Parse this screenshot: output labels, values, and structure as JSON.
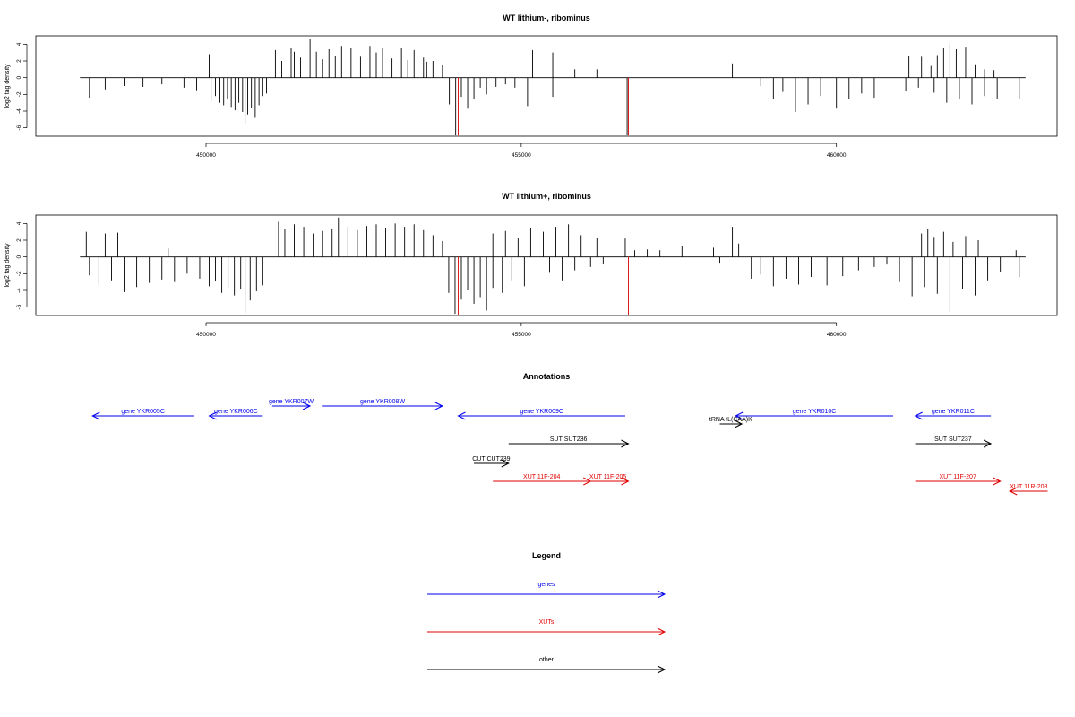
{
  "chart_data": [
    {
      "type": "bar",
      "title": "WT lithium-, ribominus",
      "ylabel": "log2 tag density",
      "xlabel": "",
      "xlim": [
        447300,
        463500
      ],
      "ylim": [
        -7,
        5
      ],
      "xticks": [
        450000,
        455000,
        460000
      ],
      "xtick_labels": [
        "450000",
        "455000",
        "460000"
      ],
      "yticks": [
        4,
        2,
        0,
        -2,
        -4,
        -6
      ],
      "ytick_labels": [
        "4",
        "2",
        "0",
        "-2",
        "-4",
        "-6"
      ],
      "baseline": {
        "from": 448000,
        "to": 463000
      },
      "series": [
        {
          "color": "#000000",
          "points": [
            [
              448150,
              -2.4
            ],
            [
              448400,
              -1.4
            ],
            [
              448700,
              -1.0
            ],
            [
              449000,
              -1.1
            ],
            [
              449300,
              -0.8
            ],
            [
              449650,
              -1.2
            ],
            [
              449850,
              -1.5
            ],
            [
              450080,
              -2.8
            ],
            [
              450150,
              -2.2
            ],
            [
              450220,
              -3.0
            ],
            [
              450280,
              -3.3
            ],
            [
              450340,
              -2.6
            ],
            [
              450400,
              -3.5
            ],
            [
              450460,
              -3.9
            ],
            [
              450520,
              -3.0
            ],
            [
              450580,
              -4.1
            ],
            [
              450620,
              -5.5
            ],
            [
              450660,
              -4.4
            ],
            [
              450720,
              -3.6
            ],
            [
              450780,
              -4.8
            ],
            [
              450840,
              -3.3
            ],
            [
              450900,
              -2.2
            ],
            [
              450960,
              -1.9
            ],
            [
              450050,
              2.8
            ],
            [
              451100,
              3.3
            ],
            [
              451200,
              2.0
            ],
            [
              451350,
              3.6
            ],
            [
              451400,
              3.1
            ],
            [
              451500,
              2.4
            ],
            [
              451650,
              4.6
            ],
            [
              451750,
              3.1
            ],
            [
              451850,
              2.2
            ],
            [
              451950,
              3.4
            ],
            [
              452050,
              2.6
            ],
            [
              452150,
              3.8
            ],
            [
              452300,
              3.6
            ],
            [
              452450,
              2.5
            ],
            [
              452600,
              3.8
            ],
            [
              452700,
              3.0
            ],
            [
              452800,
              3.5
            ],
            [
              452950,
              2.3
            ],
            [
              453100,
              3.6
            ],
            [
              453200,
              2.1
            ],
            [
              453300,
              3.3
            ],
            [
              453450,
              2.4
            ],
            [
              453600,
              2.0
            ],
            [
              453750,
              1.5
            ],
            [
              453500,
              1.9
            ],
            [
              453860,
              -3.2
            ],
            [
              453960,
              -6.9
            ],
            [
              454050,
              -2.3
            ],
            [
              454150,
              -3.7
            ],
            [
              454250,
              -2.5
            ],
            [
              454350,
              -1.2
            ],
            [
              454450,
              -2.0
            ],
            [
              454600,
              -1.1
            ],
            [
              454750,
              -0.8
            ],
            [
              454900,
              -1.2
            ],
            [
              455100,
              -3.4
            ],
            [
              455250,
              -2.2
            ],
            [
              455500,
              -2.3
            ],
            [
              455180,
              3.3
            ],
            [
              455500,
              3.0
            ],
            [
              455850,
              1.0
            ],
            [
              456200,
              1.0
            ],
            [
              456680,
              -6.9
            ],
            [
              458350,
              1.7
            ],
            [
              458800,
              -1.0
            ],
            [
              459000,
              -2.5
            ],
            [
              459150,
              -1.7
            ],
            [
              459350,
              -4.1
            ],
            [
              459550,
              -3.2
            ],
            [
              459750,
              -2.2
            ],
            [
              460000,
              -3.7
            ],
            [
              460200,
              -2.5
            ],
            [
              460400,
              -1.9
            ],
            [
              460600,
              -2.4
            ],
            [
              460850,
              -3.0
            ],
            [
              461100,
              -1.6
            ],
            [
              461300,
              -1.2
            ],
            [
              461550,
              -1.8
            ],
            [
              461750,
              -3.0
            ],
            [
              461950,
              -2.6
            ],
            [
              462150,
              -3.2
            ],
            [
              462350,
              -2.2
            ],
            [
              462550,
              -2.5
            ],
            [
              462900,
              -2.5
            ],
            [
              461150,
              2.6
            ],
            [
              461350,
              2.5
            ],
            [
              461500,
              1.4
            ],
            [
              461600,
              2.7
            ],
            [
              461700,
              3.6
            ],
            [
              461800,
              4.1
            ],
            [
              461900,
              3.4
            ],
            [
              462050,
              3.7
            ],
            [
              462200,
              1.6
            ],
            [
              462350,
              1.0
            ],
            [
              462500,
              0.9
            ]
          ]
        },
        {
          "color": "#e00000",
          "points": [
            [
              454000,
              -6.9
            ],
            [
              456700,
              -6.9
            ]
          ]
        }
      ]
    },
    {
      "type": "bar",
      "title": "WT lithium+, ribominus",
      "ylabel": "log2 tag density",
      "xlabel": "",
      "xlim": [
        447300,
        463500
      ],
      "ylim": [
        -7,
        5
      ],
      "xticks": [
        450000,
        455000,
        460000
      ],
      "xtick_labels": [
        "450000",
        "455000",
        "460000"
      ],
      "yticks": [
        4,
        2,
        0,
        -2,
        -4,
        -6
      ],
      "ytick_labels": [
        "4",
        "2",
        "0",
        "-2",
        "-4",
        "-6"
      ],
      "baseline": {
        "from": 448000,
        "to": 463000
      },
      "series": [
        {
          "color": "#000000",
          "points": [
            [
              448100,
              3.0
            ],
            [
              448400,
              2.8
            ],
            [
              448600,
              2.9
            ],
            [
              449400,
              1.0
            ],
            [
              448150,
              -2.2
            ],
            [
              448300,
              -3.3
            ],
            [
              448500,
              -2.8
            ],
            [
              448700,
              -4.2
            ],
            [
              448900,
              -3.6
            ],
            [
              449100,
              -3.1
            ],
            [
              449300,
              -2.7
            ],
            [
              449500,
              -3.0
            ],
            [
              449700,
              -2.0
            ],
            [
              449900,
              -2.6
            ],
            [
              450050,
              -3.5
            ],
            [
              450150,
              -2.9
            ],
            [
              450250,
              -4.3
            ],
            [
              450350,
              -3.7
            ],
            [
              450450,
              -4.6
            ],
            [
              450550,
              -3.9
            ],
            [
              450620,
              -6.7
            ],
            [
              450700,
              -5.2
            ],
            [
              450800,
              -4.1
            ],
            [
              450900,
              -3.4
            ],
            [
              451150,
              4.2
            ],
            [
              451250,
              3.3
            ],
            [
              451400,
              3.9
            ],
            [
              451550,
              3.6
            ],
            [
              451700,
              2.8
            ],
            [
              451850,
              3.1
            ],
            [
              452000,
              3.4
            ],
            [
              452100,
              4.7
            ],
            [
              452250,
              3.6
            ],
            [
              452400,
              3.2
            ],
            [
              452550,
              3.7
            ],
            [
              452700,
              3.9
            ],
            [
              452850,
              3.5
            ],
            [
              453000,
              4.0
            ],
            [
              453150,
              3.6
            ],
            [
              453300,
              3.9
            ],
            [
              453450,
              3.2
            ],
            [
              453600,
              2.6
            ],
            [
              453750,
              1.9
            ],
            [
              453850,
              -4.3
            ],
            [
              453950,
              -6.8
            ],
            [
              454050,
              -5.1
            ],
            [
              454150,
              -4.0
            ],
            [
              454250,
              -5.6
            ],
            [
              454350,
              -4.8
            ],
            [
              454450,
              -6.4
            ],
            [
              454550,
              -3.7
            ],
            [
              454700,
              -4.3
            ],
            [
              454850,
              -2.8
            ],
            [
              455050,
              -3.5
            ],
            [
              455250,
              -2.4
            ],
            [
              455450,
              -1.9
            ],
            [
              455650,
              -2.8
            ],
            [
              455850,
              -1.6
            ],
            [
              456100,
              -1.2
            ],
            [
              456300,
              -0.9
            ],
            [
              454550,
              2.8
            ],
            [
              454750,
              3.1
            ],
            [
              454950,
              2.3
            ],
            [
              455150,
              3.5
            ],
            [
              455350,
              3.0
            ],
            [
              455550,
              3.6
            ],
            [
              455750,
              3.9
            ],
            [
              455950,
              2.6
            ],
            [
              456200,
              2.3
            ],
            [
              456650,
              2.2
            ],
            [
              456800,
              0.8
            ],
            [
              457000,
              0.9
            ],
            [
              457200,
              0.8
            ],
            [
              457550,
              1.3
            ],
            [
              458050,
              1.1
            ],
            [
              458350,
              3.6
            ],
            [
              458450,
              1.6
            ],
            [
              458150,
              -0.8
            ],
            [
              458650,
              -2.6
            ],
            [
              458800,
              -2.1
            ],
            [
              459000,
              -3.5
            ],
            [
              459200,
              -2.6
            ],
            [
              459400,
              -3.3
            ],
            [
              459600,
              -2.4
            ],
            [
              459850,
              -3.4
            ],
            [
              460100,
              -2.3
            ],
            [
              460350,
              -1.6
            ],
            [
              460600,
              -1.2
            ],
            [
              460800,
              -0.9
            ],
            [
              461000,
              -3.0
            ],
            [
              461200,
              -4.7
            ],
            [
              461400,
              -3.6
            ],
            [
              461600,
              -4.4
            ],
            [
              461800,
              -6.5
            ],
            [
              462000,
              -3.8
            ],
            [
              462200,
              -4.6
            ],
            [
              462400,
              -2.8
            ],
            [
              462600,
              -1.8
            ],
            [
              462900,
              -2.4
            ],
            [
              461350,
              2.8
            ],
            [
              461450,
              3.3
            ],
            [
              461550,
              2.4
            ],
            [
              461700,
              3.0
            ],
            [
              461850,
              1.8
            ],
            [
              462050,
              2.5
            ],
            [
              462250,
              2.0
            ],
            [
              462850,
              0.8
            ]
          ]
        },
        {
          "color": "#e00000",
          "points": [
            [
              454000,
              -6.9
            ],
            [
              456700,
              -6.9
            ]
          ]
        }
      ]
    }
  ],
  "annotations": {
    "title": "Annotations",
    "features": [
      {
        "label": "gene YKR005C",
        "color": "#0000ee",
        "from": 449800,
        "to": 448200,
        "track": 1
      },
      {
        "label": "gene YKR006C",
        "color": "#0000ee",
        "from": 450900,
        "to": 450050,
        "track": 1
      },
      {
        "label": "gene YKR007W",
        "color": "#0000ee",
        "from": 451050,
        "to": 451650,
        "track": 0
      },
      {
        "label": "gene YKR008W",
        "color": "#0000ee",
        "from": 451850,
        "to": 453750,
        "track": 0
      },
      {
        "label": "gene YKR009C",
        "color": "#0000ee",
        "from": 456650,
        "to": 454000,
        "track": 1
      },
      {
        "label": "gene YKR010C",
        "color": "#0000ee",
        "from": 460900,
        "to": 458400,
        "track": 1
      },
      {
        "label": "gene YKR011C",
        "color": "#0000ee",
        "from": 462450,
        "to": 461250,
        "track": 1
      },
      {
        "label": "tRNA tL(CAA)K",
        "color": "#000000",
        "from": 458150,
        "to": 458500,
        "track": 2
      },
      {
        "label": "SUT SUT236",
        "color": "#000000",
        "from": 454800,
        "to": 456700,
        "track": 3
      },
      {
        "label": "SUT SUT237",
        "color": "#000000",
        "from": 461250,
        "to": 462450,
        "track": 3
      },
      {
        "label": "CUT CUT239",
        "color": "#000000",
        "from": 454250,
        "to": 454800,
        "track": 4
      },
      {
        "label": "XUT 11F-204",
        "color": "#e00000",
        "from": 454550,
        "to": 456100,
        "track": 5
      },
      {
        "label": "XUT 11F-205",
        "color": "#e00000",
        "from": 456050,
        "to": 456700,
        "track": 5
      },
      {
        "label": "XUT 11F-207",
        "color": "#e00000",
        "from": 461250,
        "to": 462600,
        "track": 5
      },
      {
        "label": "XUT 11R-208",
        "color": "#e00000",
        "from": 463350,
        "to": 462750,
        "track": 6
      }
    ]
  },
  "legend": {
    "title": "Legend",
    "items": [
      {
        "label": "genes",
        "color": "#0000ee"
      },
      {
        "label": "XUTs",
        "color": "#e00000"
      },
      {
        "label": "other",
        "color": "#000000"
      }
    ]
  }
}
